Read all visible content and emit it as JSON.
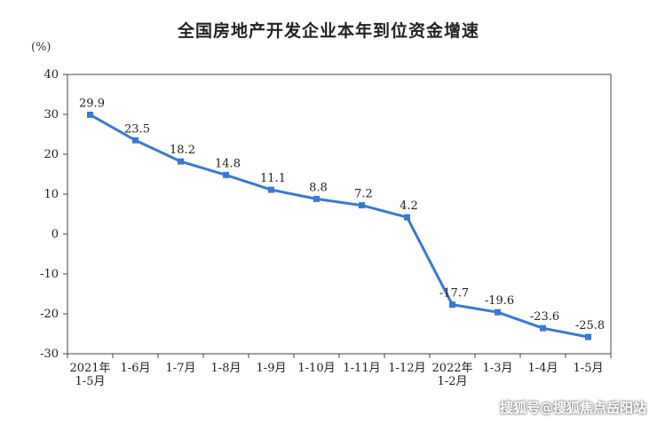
{
  "chart_data": {
    "type": "line",
    "title": "全国房地产开发企业本年到位资金增速",
    "unit_label": "(%)",
    "categories": [
      "2021年\n1-5月",
      "1-6月",
      "1-7月",
      "1-8月",
      "1-9月",
      "1-10月",
      "1-11月",
      "1-12月",
      "2022年\n1-2月",
      "1-3月",
      "1-4月",
      "1-5月"
    ],
    "values": [
      29.9,
      23.5,
      18.2,
      14.8,
      11.1,
      8.8,
      7.2,
      4.2,
      -17.7,
      -19.6,
      -23.6,
      -25.8
    ],
    "data_labels": [
      "29.9",
      "23.5",
      "18.2",
      "14.8",
      "11.1",
      "8.8",
      "7.2",
      "4.2",
      "-17.7",
      "-19.6",
      "-23.6",
      "-25.8"
    ],
    "yticks": [
      "40",
      "30",
      "20",
      "10",
      "0",
      "-10",
      "-20",
      "-30"
    ],
    "ylim": [
      -30,
      40
    ],
    "grid": false,
    "line_color": "#3a78d4"
  },
  "watermark": "搜狐号@搜狐焦点岳阳站"
}
